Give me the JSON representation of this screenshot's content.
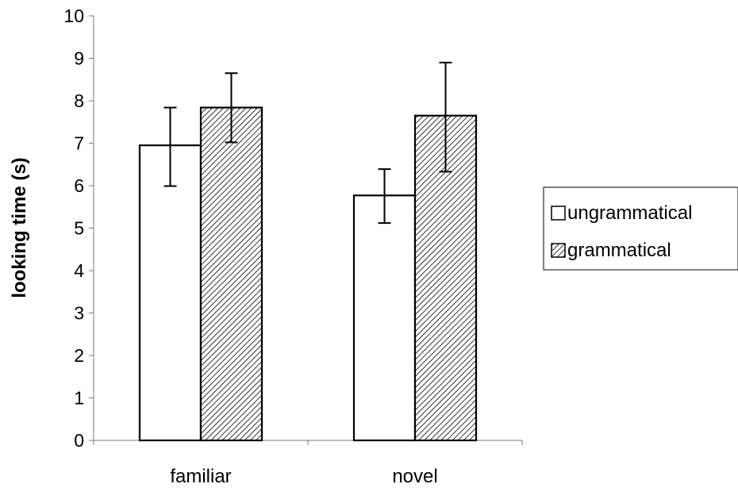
{
  "chart_data": {
    "type": "bar",
    "categories": [
      "familiar",
      "novel"
    ],
    "series": [
      {
        "name": "ungrammatical",
        "fill": "white",
        "values": [
          6.95,
          5.77
        ],
        "error_low": [
          5.99,
          5.12
        ],
        "error_high": [
          7.84,
          6.39
        ]
      },
      {
        "name": "grammatical",
        "fill": "hatched",
        "values": [
          7.84,
          7.65
        ],
        "error_low": [
          7.02,
          6.33
        ],
        "error_high": [
          8.65,
          8.9
        ]
      }
    ],
    "ylabel": "looking time (s)",
    "xlabel": "",
    "ylim": [
      0,
      10
    ],
    "yticks": [
      "0",
      "1",
      "2",
      "3",
      "4",
      "5",
      "6",
      "7",
      "8",
      "9",
      "10"
    ],
    "grid": false,
    "legend_position": "right",
    "colors": {
      "bar_stroke": "#000000",
      "hatch": "#000000",
      "background": "#ffffff"
    }
  }
}
